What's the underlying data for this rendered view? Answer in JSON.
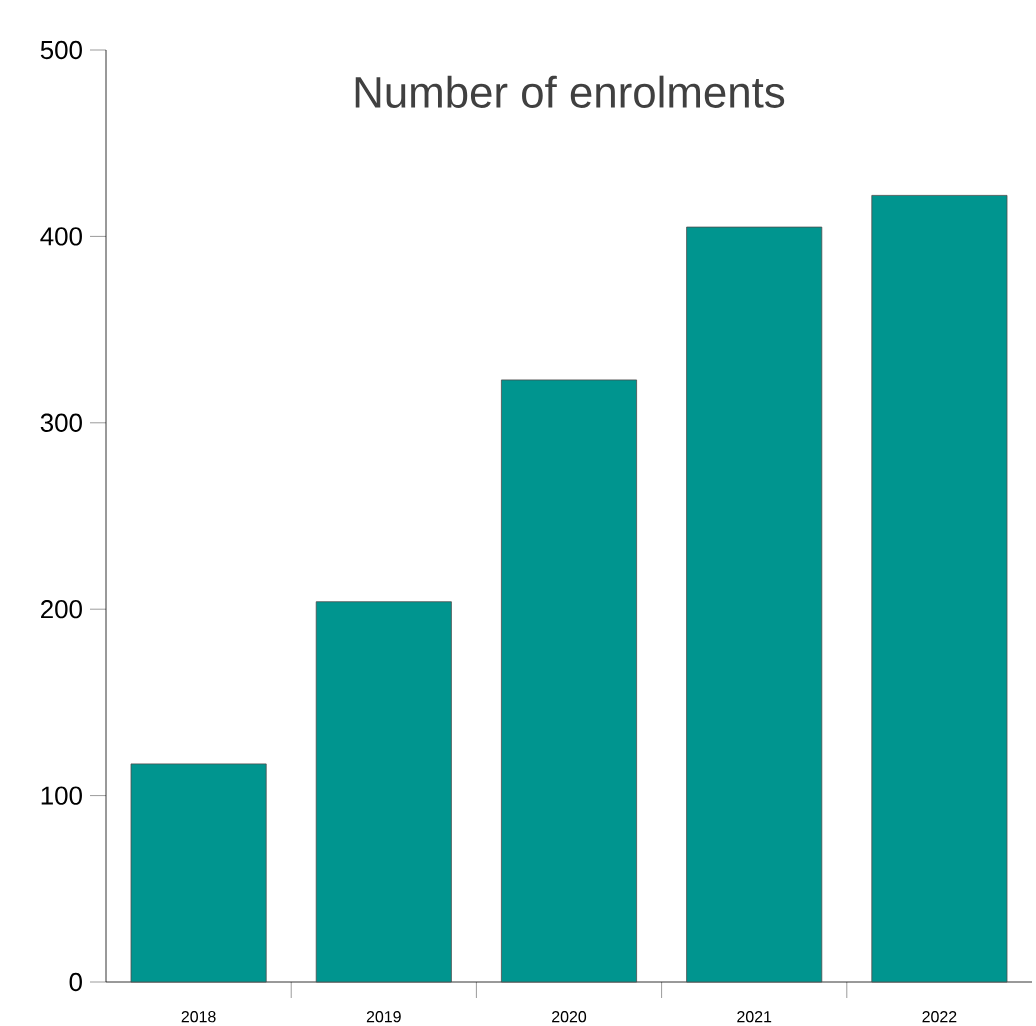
{
  "chart_data": {
    "type": "bar",
    "title": "Number of enrolments",
    "categories": [
      "2018",
      "2019",
      "2020",
      "2021",
      "2022"
    ],
    "values": [
      117,
      204,
      323,
      405,
      422
    ],
    "color": "#00958f",
    "ylim": [
      0,
      500
    ],
    "yticks": [
      0,
      100,
      200,
      300,
      400,
      500
    ]
  }
}
